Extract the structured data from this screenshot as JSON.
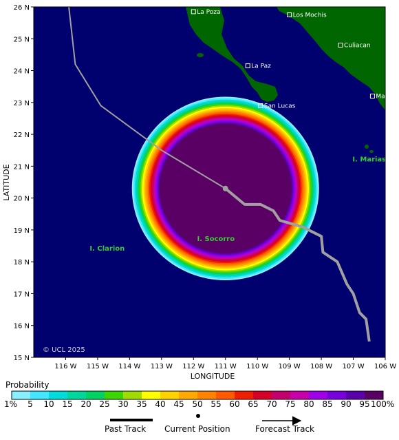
{
  "map": {
    "axis_x_label": "LONGITUDE",
    "axis_y_label": "LATITUDE",
    "lon_range": [
      -117,
      -106
    ],
    "lat_range": [
      15,
      26
    ],
    "lon_ticks": [
      "116 W",
      "115 W",
      "114 W",
      "113 W",
      "112 W",
      "111 W",
      "110 W",
      "109 W",
      "108 W",
      "107 W",
      "106 W"
    ],
    "lat_ticks": [
      "15 N",
      "16 N",
      "17 N",
      "18 N",
      "19 N",
      "20 N",
      "21 N",
      "22 N",
      "23 N",
      "24 N",
      "25 N",
      "26 N"
    ],
    "copyright": "© UCL 2025",
    "colors": {
      "ocean": "#00006e",
      "land": "#006600",
      "past_track": "#a0a0a0",
      "forecast_track": "#a0a0a0"
    }
  },
  "places": [
    {
      "name": "La Poza",
      "lon": -112.0,
      "lat": 25.85
    },
    {
      "name": "Los Mochis",
      "lon": -109.0,
      "lat": 25.75
    },
    {
      "name": "Culiacan",
      "lon": -107.4,
      "lat": 24.8
    },
    {
      "name": "La Paz",
      "lon": -110.3,
      "lat": 24.15
    },
    {
      "name": "Mazatlan",
      "lon": -106.4,
      "lat": 23.2
    },
    {
      "name": "San Lucas",
      "lon": -109.9,
      "lat": 22.9
    }
  ],
  "islands": [
    {
      "name": "I. Marias",
      "lon": -106.5,
      "lat": 21.15
    },
    {
      "name": "I. Clarion",
      "lon": -114.7,
      "lat": 18.35
    },
    {
      "name": "I. Socorro",
      "lon": -111.3,
      "lat": 18.65
    }
  ],
  "storm": {
    "current_position": {
      "lon": -111.0,
      "lat": 20.3
    },
    "past_track": [
      [
        -115.9,
        26.0
      ],
      [
        -115.7,
        24.2
      ],
      [
        -114.9,
        22.9
      ],
      [
        -113.0,
        21.5
      ],
      [
        -111.5,
        20.6
      ],
      [
        -111.0,
        20.3
      ]
    ],
    "forecast_track": [
      [
        -111.0,
        20.3
      ],
      [
        -110.4,
        19.8
      ],
      [
        -109.9,
        19.8
      ],
      [
        -109.5,
        19.6
      ],
      [
        -109.3,
        19.3
      ],
      [
        -108.6,
        19.1
      ],
      [
        -108.0,
        18.8
      ],
      [
        -107.95,
        18.3
      ],
      [
        -107.5,
        18.0
      ],
      [
        -107.2,
        17.3
      ],
      [
        -107.0,
        17.0
      ],
      [
        -106.8,
        16.4
      ],
      [
        -106.6,
        16.2
      ],
      [
        -106.5,
        15.5
      ]
    ]
  },
  "probability_legend": {
    "title": "Probability",
    "labels": [
      "1%",
      "5",
      "10",
      "15",
      "20",
      "25",
      "30",
      "35",
      "40",
      "45",
      "50",
      "55",
      "60",
      "65",
      "70",
      "75",
      "80",
      "85",
      "90",
      "95",
      "100%"
    ],
    "colors": [
      "#88f0ff",
      "#44e6ff",
      "#00dcdc",
      "#00d79c",
      "#00d264",
      "#3cd700",
      "#a0dc00",
      "#ffff00",
      "#ffd200",
      "#ffaa00",
      "#ff8200",
      "#ff5a00",
      "#f01e00",
      "#d70028",
      "#c3006e",
      "#c800aa",
      "#a000e6",
      "#7800dc",
      "#5a00aa",
      "#5a0064"
    ]
  },
  "track_key": {
    "past": "Past Track",
    "current": "Current Position",
    "forecast": "Forecast Track"
  }
}
